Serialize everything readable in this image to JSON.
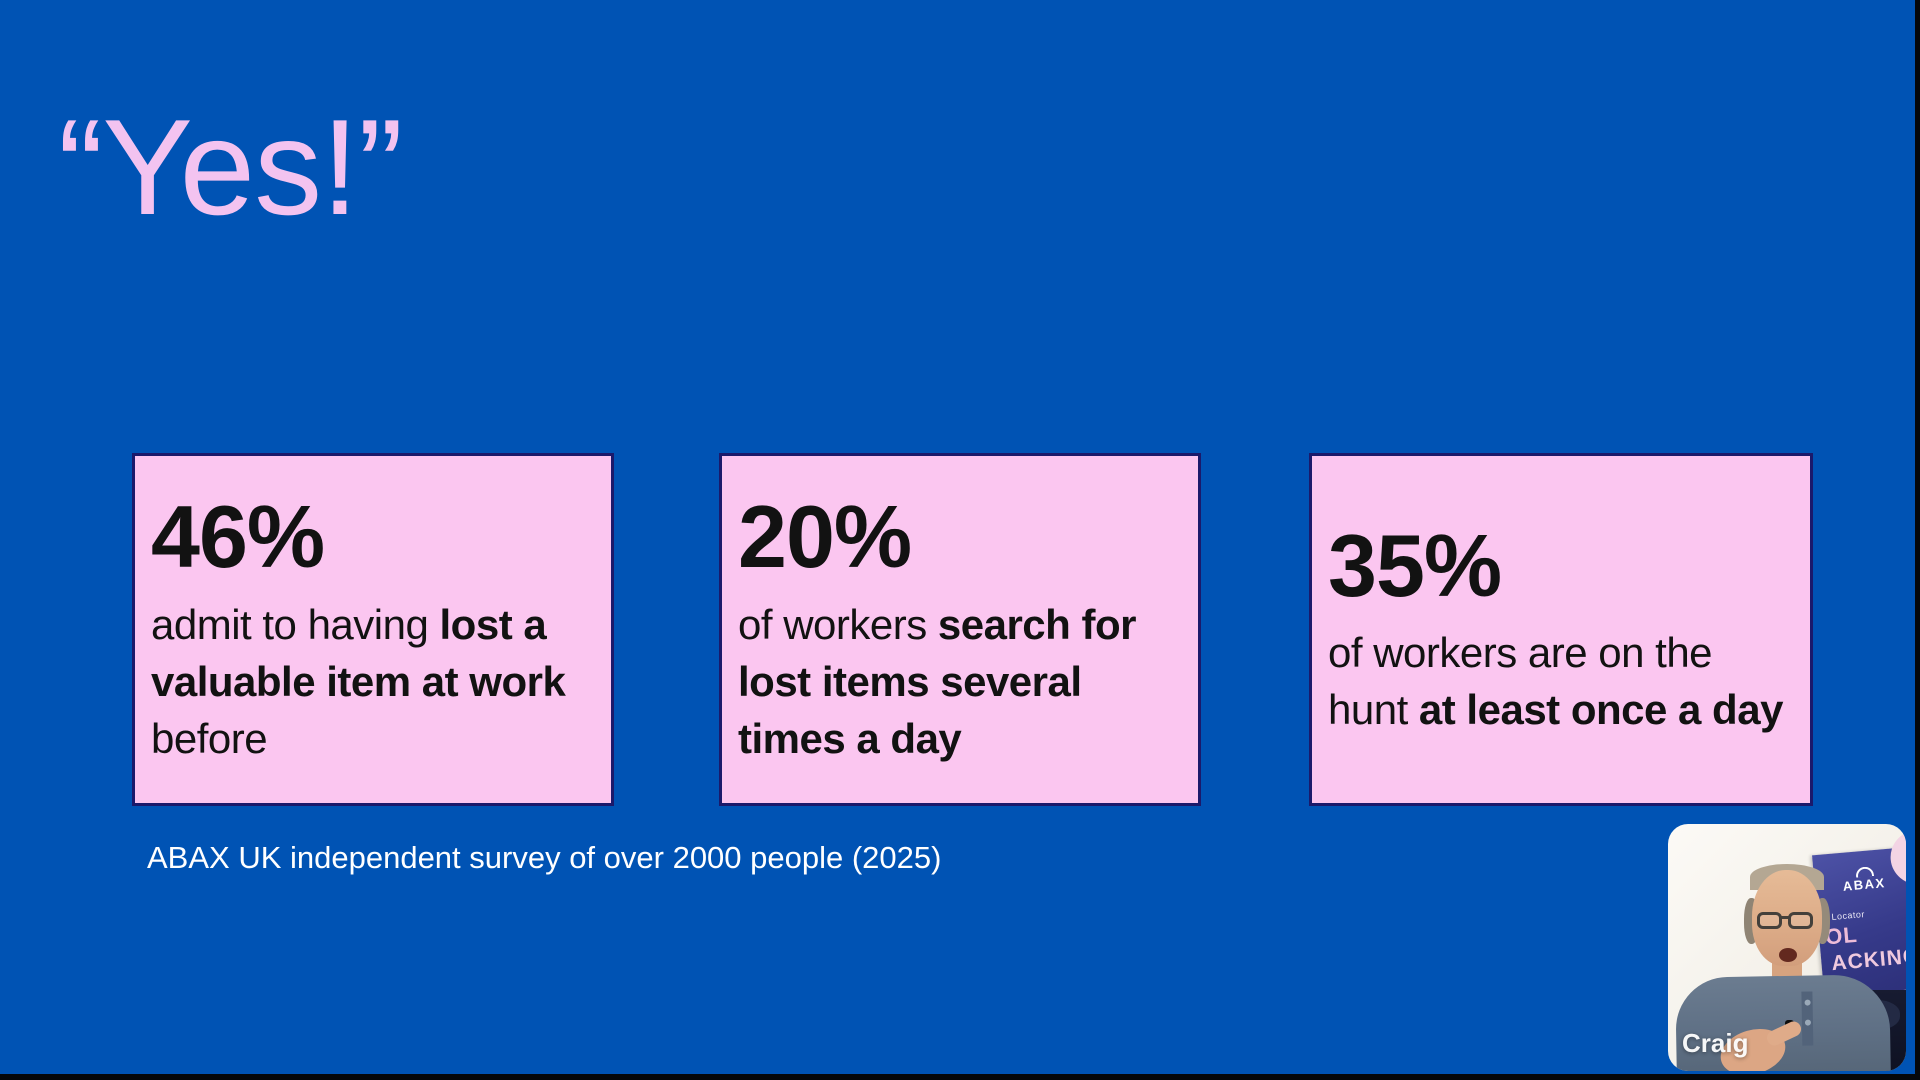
{
  "slide": {
    "title": "“Yes!”",
    "caption": "ABAX UK independent survey of over 2000 people (2025)",
    "stats": [
      {
        "value": "46%",
        "segments": [
          {
            "t": "admit to having ",
            "b": false
          },
          {
            "t": "lost a valuable item at work",
            "b": true
          },
          {
            "t": " before",
            "b": false
          }
        ]
      },
      {
        "value": "20%",
        "segments": [
          {
            "t": "of workers ",
            "b": false
          },
          {
            "t": "search for lost items several times a day",
            "b": true
          }
        ]
      },
      {
        "value": "35%",
        "segments": [
          {
            "t": "of workers are on the hunt ",
            "b": false
          },
          {
            "t": "at least once a day",
            "b": true
          }
        ]
      }
    ]
  },
  "webcam": {
    "name": "Craig",
    "banner": {
      "brand": "ABAX",
      "subtitle": "Locator",
      "line1": "OL",
      "line2": "ACKING"
    }
  },
  "colors": {
    "background": "#0053b4",
    "card_fill": "#fbc6f0",
    "card_border": "#1b196b",
    "title_pink": "#f3c3f0",
    "body_text": "#121212",
    "caption_text": "#ffffff"
  }
}
